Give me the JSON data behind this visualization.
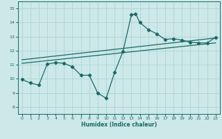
{
  "title": "",
  "xlabel": "Humidex (Indice chaleur)",
  "ylabel": "",
  "bg_color": "#cce8e8",
  "grid_color": "#aad0d0",
  "line_color": "#1a6868",
  "xlim": [
    -0.5,
    23.5
  ],
  "ylim": [
    7.5,
    15.5
  ],
  "xticks": [
    0,
    1,
    2,
    3,
    4,
    5,
    6,
    7,
    8,
    9,
    10,
    11,
    12,
    13,
    14,
    15,
    16,
    17,
    18,
    19,
    20,
    21,
    22,
    23
  ],
  "yticks": [
    8,
    9,
    10,
    11,
    12,
    13,
    14,
    15
  ],
  "line1": {
    "x": [
      0,
      1,
      2,
      3,
      4,
      5,
      6,
      7,
      8,
      9,
      10,
      11,
      12,
      13,
      13.5,
      14,
      15,
      16,
      17,
      18,
      19,
      20,
      21,
      22,
      23
    ],
    "y": [
      9.95,
      9.7,
      9.55,
      11.05,
      11.15,
      11.1,
      10.85,
      10.25,
      10.25,
      8.98,
      8.62,
      10.45,
      11.95,
      14.55,
      14.62,
      14.0,
      13.5,
      13.2,
      12.8,
      12.85,
      12.75,
      12.6,
      12.55,
      12.55,
      12.95
    ]
  },
  "line2": {
    "x": [
      0,
      23
    ],
    "y": [
      11.1,
      12.55
    ]
  },
  "line3": {
    "x": [
      0,
      23
    ],
    "y": [
      11.35,
      12.9
    ]
  },
  "marker": "D",
  "marker_size": 2.2,
  "linewidth": 0.9,
  "tick_fontsize": 4.5,
  "xlabel_fontsize": 5.5
}
